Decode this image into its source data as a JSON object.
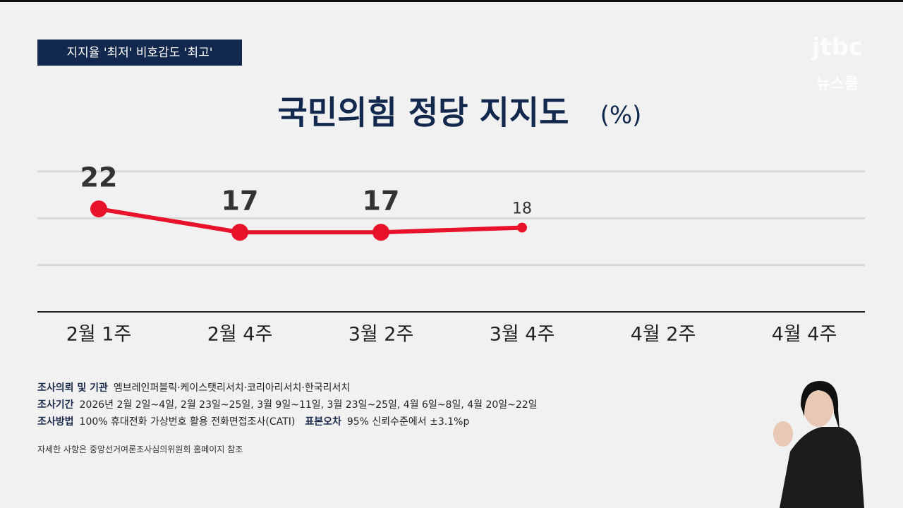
{
  "tag": "지지율 '최저' 비호감도 '최고'",
  "logo": {
    "brand": "jtbc",
    "program": "뉴스룸"
  },
  "chart_data": {
    "type": "line",
    "title": "국민의힘 정당 지지도",
    "unit": "(%)",
    "categories": [
      "2월 1주",
      "2월 4주",
      "3월 2주",
      "3월 4주",
      "4월 2주",
      "4월 4주"
    ],
    "values": [
      22,
      17,
      17,
      18,
      null,
      null
    ],
    "color": "#e8132a",
    "ylim": [
      0,
      30
    ],
    "yticks": [
      0,
      10,
      20,
      30
    ],
    "grid": true
  },
  "notes": [
    {
      "label": "조사의뢰 및 기관",
      "text": "엠브레인퍼블릭·케이스탯리서치·코리아리서치·한국리서치"
    },
    {
      "label": "조사기간",
      "text": "2026년 2월 2일~4일, 2월 23일~25일, 3월 9일~11일, 3월 23일~25일, 4월 6일~8일, 4월 20일~22일"
    },
    {
      "label": "조사방법",
      "text": "100% 휴대전화 가상번호 활용 전화면접조사(CATI)",
      "label2": "표본오차",
      "text2": "95% 신뢰수준에서 ±3.1%p"
    }
  ],
  "footnote": "자세한 사항은 중앙선거여론조사심의위원회 홈페이지 참조"
}
